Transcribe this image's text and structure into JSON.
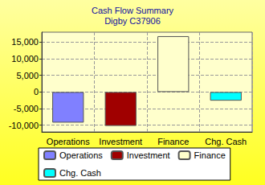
{
  "chart_data": {
    "type": "bar",
    "title": "Cash Flow Summary",
    "subtitle": "Digby C37906",
    "categories": [
      "Operations",
      "Investment",
      "Finance",
      "Chg. Cash"
    ],
    "series": [
      {
        "name": "Operations",
        "color": "#8080ff",
        "values": [
          -9200,
          null,
          null,
          null
        ]
      },
      {
        "name": "Investment",
        "color": "#a00000",
        "values": [
          null,
          -10200,
          null,
          null
        ]
      },
      {
        "name": "Finance",
        "color": "#ffffcc",
        "values": [
          null,
          null,
          16800,
          null
        ]
      },
      {
        "name": "Chg. Cash",
        "color": "#00ffff",
        "values": [
          null,
          null,
          null,
          -2600
        ]
      }
    ],
    "ylim": [
      -12000,
      18000
    ],
    "yticks": [
      {
        "value": -10000,
        "label": "-10,000"
      },
      {
        "value": -5000,
        "label": "-5,000"
      },
      0,
      {
        "value": 5000,
        "label": "5,000"
      },
      {
        "value": 10000,
        "label": "10,000"
      },
      {
        "value": 15000,
        "label": "15,000"
      }
    ],
    "grid": true,
    "legend": "bottom"
  }
}
